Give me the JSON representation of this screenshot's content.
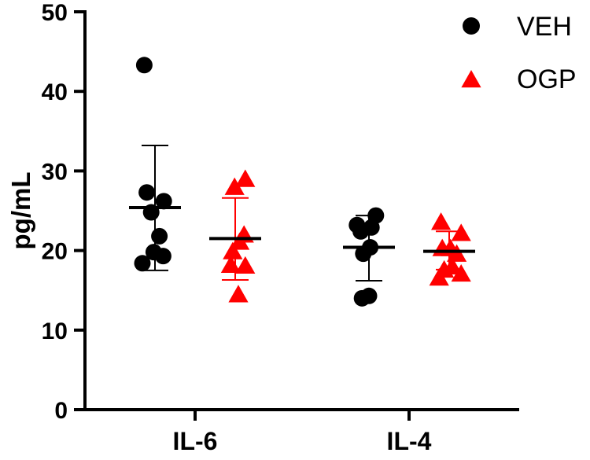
{
  "chart_data": {
    "type": "scatter",
    "ylabel": "pg/mL",
    "xlabel": "",
    "ylim": [
      0,
      50
    ],
    "yticks": [
      0,
      10,
      20,
      30,
      40,
      50
    ],
    "grid": false,
    "legend_position": "top-right",
    "categories": [
      "IL-6",
      "IL-4"
    ],
    "series": [
      {
        "name": "VEH",
        "color": "#000000",
        "marker": "circle",
        "groups": [
          {
            "category": "IL-6",
            "points": [
              {
                "x": -0.17,
                "y": 43.3
              },
              {
                "x": -0.13,
                "y": 27.3
              },
              {
                "x": 0.14,
                "y": 26.2
              },
              {
                "x": -0.06,
                "y": 24.8
              },
              {
                "x": 0.07,
                "y": 21.8
              },
              {
                "x": -0.02,
                "y": 19.8
              },
              {
                "x": 0.13,
                "y": 19.3
              },
              {
                "x": -0.2,
                "y": 18.4
              }
            ],
            "mean": 25.4,
            "sd_upper": 33.2,
            "sd_lower": 17.5
          },
          {
            "category": "IL-4",
            "points": [
              {
                "x": -0.19,
                "y": 23.2
              },
              {
                "x": 0.11,
                "y": 24.4
              },
              {
                "x": -0.13,
                "y": 22.4
              },
              {
                "x": 0.04,
                "y": 22.9
              },
              {
                "x": -0.09,
                "y": 19.6
              },
              {
                "x": 0.02,
                "y": 20.4
              },
              {
                "x": -0.11,
                "y": 14.0
              },
              {
                "x": 0.0,
                "y": 14.3
              }
            ],
            "mean": 20.4,
            "sd_upper": 24.4,
            "sd_lower": 16.2
          }
        ]
      },
      {
        "name": "OGP",
        "color": "#ff0000",
        "marker": "triangle",
        "groups": [
          {
            "category": "IL-6",
            "points": [
              {
                "x": -0.01,
                "y": 28.0
              },
              {
                "x": 0.16,
                "y": 29.0
              },
              {
                "x": 0.14,
                "y": 22.0
              },
              {
                "x": 0.07,
                "y": 21.1
              },
              {
                "x": -0.04,
                "y": 19.9
              },
              {
                "x": -0.07,
                "y": 18.2
              },
              {
                "x": 0.16,
                "y": 18.1
              },
              {
                "x": 0.05,
                "y": 14.5
              }
            ],
            "mean": 21.5,
            "sd_upper": 26.6,
            "sd_lower": 16.3
          },
          {
            "category": "IL-4",
            "points": [
              {
                "x": -0.13,
                "y": 23.6
              },
              {
                "x": 0.19,
                "y": 22.2
              },
              {
                "x": -0.11,
                "y": 20.3
              },
              {
                "x": 0.02,
                "y": 20.3
              },
              {
                "x": 0.12,
                "y": 19.6
              },
              {
                "x": 0.05,
                "y": 18.0
              },
              {
                "x": -0.08,
                "y": 17.6
              },
              {
                "x": 0.19,
                "y": 17.1
              },
              {
                "x": -0.16,
                "y": 16.6
              }
            ],
            "mean": 19.9,
            "sd_upper": 22.4,
            "sd_lower": 17.6
          }
        ]
      }
    ]
  }
}
